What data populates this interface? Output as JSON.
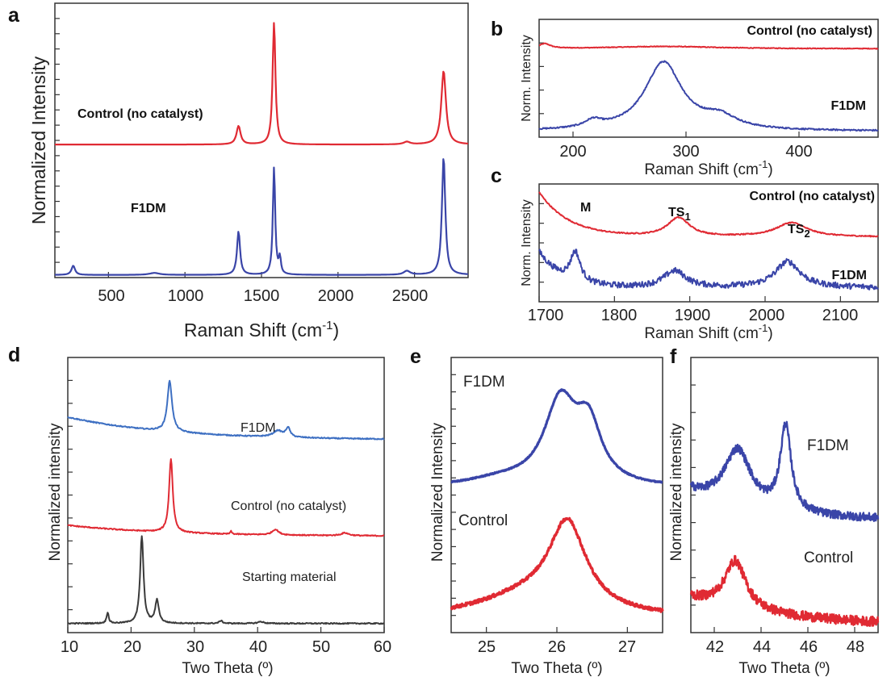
{
  "colors": {
    "red": "#e02a33",
    "blue": "#3a45a8",
    "lightblue": "#3d6fc2",
    "gray": "#3a3a3a"
  },
  "chart_data": [
    {
      "panel": "a",
      "type": "line",
      "xlabel": "Raman Shift (cm",
      "xlabel_sup": "-1",
      "xlabel_tail": ")",
      "ylabel": "Normalized Intensity",
      "xlim": [
        150,
        2850
      ],
      "ylim": [
        0,
        2
      ],
      "xticks": [
        "500",
        "1000",
        "1500",
        "2000",
        "2500"
      ],
      "series": [
        {
          "name": "Control (no catalyst)",
          "color": "red",
          "offset": 1.0,
          "baseline": 0.01,
          "peaks": [
            [
              1350,
              0.14,
              16
            ],
            [
              1582,
              0.93,
              11
            ],
            [
              2450,
              0.02,
              25
            ],
            [
              2690,
              0.56,
              18
            ]
          ]
        },
        {
          "name": "F1DM",
          "color": "blue",
          "offset": 0.0,
          "baseline": 0.02,
          "peaks": [
            [
              270,
              0.07,
              14
            ],
            [
              800,
              0.015,
              40
            ],
            [
              1350,
              0.33,
              12
            ],
            [
              1582,
              0.82,
              9
            ],
            [
              1620,
              0.12,
              8
            ],
            [
              2450,
              0.03,
              25
            ],
            [
              2690,
              0.9,
              13
            ]
          ]
        }
      ],
      "annotations": [
        "Control (no catalyst)",
        "F1DM"
      ]
    },
    {
      "panel": "b",
      "type": "line",
      "xlabel": "Raman Shift (cm",
      "xlabel_sup": "-1",
      "xlabel_tail": ")",
      "ylabel": "Norm. Intensity",
      "xlim": [
        170,
        470
      ],
      "ylim": [
        0,
        1
      ],
      "xticks": [
        "200",
        "300",
        "400"
      ],
      "series": [
        {
          "name": "Control (no catalyst)",
          "color": "red",
          "offset": 0.75,
          "baseline": 0.0,
          "noise": 0.003,
          "peaks": [
            [
              175,
              0.04,
              6
            ],
            [
              280,
              0.02,
              60
            ]
          ]
        },
        {
          "name": "F1DM",
          "color": "blue",
          "offset": 0.05,
          "baseline": 0.0,
          "noise": 0.006,
          "peaks": [
            [
              218,
              0.06,
              9
            ],
            [
              280,
              0.58,
              20
            ],
            [
              330,
              0.1,
              18
            ]
          ]
        }
      ],
      "annotations": [
        "Control (no catalyst)",
        "F1DM"
      ]
    },
    {
      "panel": "c",
      "type": "line",
      "xlabel": "Raman Shift (cm",
      "xlabel_sup": "-1",
      "xlabel_tail": ")",
      "ylabel": "Norm. Intensity",
      "xlim": [
        1700,
        2150
      ],
      "ylim": [
        0,
        1
      ],
      "xticks": [
        "1700",
        "1800",
        "1900",
        "2000",
        "2100"
      ],
      "series": [
        {
          "name": "Control (no catalyst)",
          "color": "red",
          "offset": 0.55,
          "baseline": 0.0,
          "noise": 0.005,
          "decay": [
            0.38,
            40
          ],
          "peaks": [
            [
              1885,
              0.16,
              18
            ],
            [
              2035,
              0.12,
              25
            ]
          ]
        },
        {
          "name": "F1DM",
          "color": "blue",
          "offset": 0.08,
          "baseline": 0.04,
          "noise": 0.025,
          "decay": [
            0.3,
            30
          ],
          "peaks": [
            [
              1748,
              0.25,
              8
            ],
            [
              1880,
              0.14,
              18
            ],
            [
              2030,
              0.22,
              20
            ]
          ]
        }
      ],
      "annotations": [
        "Control (no catalyst)",
        "F1DM",
        "M",
        "TS",
        "1",
        "TS",
        "2"
      ]
    },
    {
      "panel": "d",
      "type": "line",
      "xlabel": "Two Theta (º)",
      "ylabel": "Normalized intensity",
      "xlim": [
        10,
        60
      ],
      "ylim": [
        0,
        3
      ],
      "xticks": [
        "10",
        "20",
        "30",
        "40",
        "50",
        "60"
      ],
      "series": [
        {
          "name": "F1DM",
          "color": "lightblue",
          "offset": 2.1,
          "baseline": 0.0,
          "noise": 0.006,
          "decay": [
            0.25,
            16
          ],
          "peaks": [
            [
              26.1,
              0.55,
              0.45
            ],
            [
              43.2,
              0.07,
              0.9
            ],
            [
              44.8,
              0.1,
              0.4
            ]
          ]
        },
        {
          "name": "Control (no catalyst)",
          "color": "red",
          "offset": 1.05,
          "baseline": 0.0,
          "noise": 0.006,
          "decay": [
            0.12,
            16
          ],
          "peaks": [
            [
              26.3,
              0.8,
              0.35
            ],
            [
              35.8,
              0.03,
              0.15
            ],
            [
              42.8,
              0.06,
              0.6
            ],
            [
              53.8,
              0.03,
              0.7
            ]
          ]
        },
        {
          "name": "Starting material",
          "color": "gray",
          "offset": 0.1,
          "baseline": 0.0,
          "noise": 0.006,
          "peaks": [
            [
              16.3,
              0.12,
              0.2
            ],
            [
              21.7,
              0.95,
              0.32
            ],
            [
              24.1,
              0.25,
              0.35
            ],
            [
              34.2,
              0.03,
              0.3
            ],
            [
              40.5,
              0.02,
              0.5
            ]
          ]
        }
      ],
      "annotations": [
        "F1DM",
        "Control (no catalyst)",
        "Starting material"
      ]
    },
    {
      "panel": "e",
      "type": "line",
      "xlabel": "Two Theta (º)",
      "ylabel": "Normalized Intensity",
      "xlim": [
        24.5,
        27.5
      ],
      "ylim": [
        0,
        2
      ],
      "xticks": [
        "25",
        "26",
        "27"
      ],
      "series": [
        {
          "name": "F1DM",
          "color": "blue",
          "offset": 1.02,
          "baseline": 0.03,
          "noise": 0.004,
          "peaks": [
            [
              25.2,
              0.05,
              0.6
            ],
            [
              26.05,
              0.6,
              0.28
            ],
            [
              26.45,
              0.4,
              0.22
            ]
          ]
        },
        {
          "name": "Control",
          "color": "red",
          "offset": 0.1,
          "baseline": 0.0,
          "noise": 0.012,
          "peaks": [
            [
              25.6,
              0.15,
              0.9
            ],
            [
              26.15,
              0.62,
              0.32
            ]
          ]
        }
      ],
      "annotations": [
        "F1DM",
        "Control"
      ]
    },
    {
      "panel": "f",
      "type": "line",
      "xlabel": "Two Theta (º)",
      "ylabel": "Normalized intensity",
      "xlim": [
        41,
        49
      ],
      "ylim": [
        0,
        2
      ],
      "xticks": [
        "42",
        "44",
        "46",
        "48"
      ],
      "series": [
        {
          "name": "F1DM",
          "color": "blue",
          "offset": 0.82,
          "baseline": 0.0,
          "noise": 0.03,
          "decay": [
            0.2,
            2.5
          ],
          "peaks": [
            [
              43.0,
              0.42,
              0.7
            ],
            [
              45.05,
              0.62,
              0.28
            ]
          ]
        },
        {
          "name": "Control",
          "color": "red",
          "offset": 0.05,
          "baseline": 0.0,
          "noise": 0.035,
          "decay": [
            0.2,
            4
          ],
          "peaks": [
            [
              42.9,
              0.35,
              0.55
            ]
          ]
        }
      ],
      "annotations": [
        "F1DM",
        "Control"
      ]
    }
  ]
}
